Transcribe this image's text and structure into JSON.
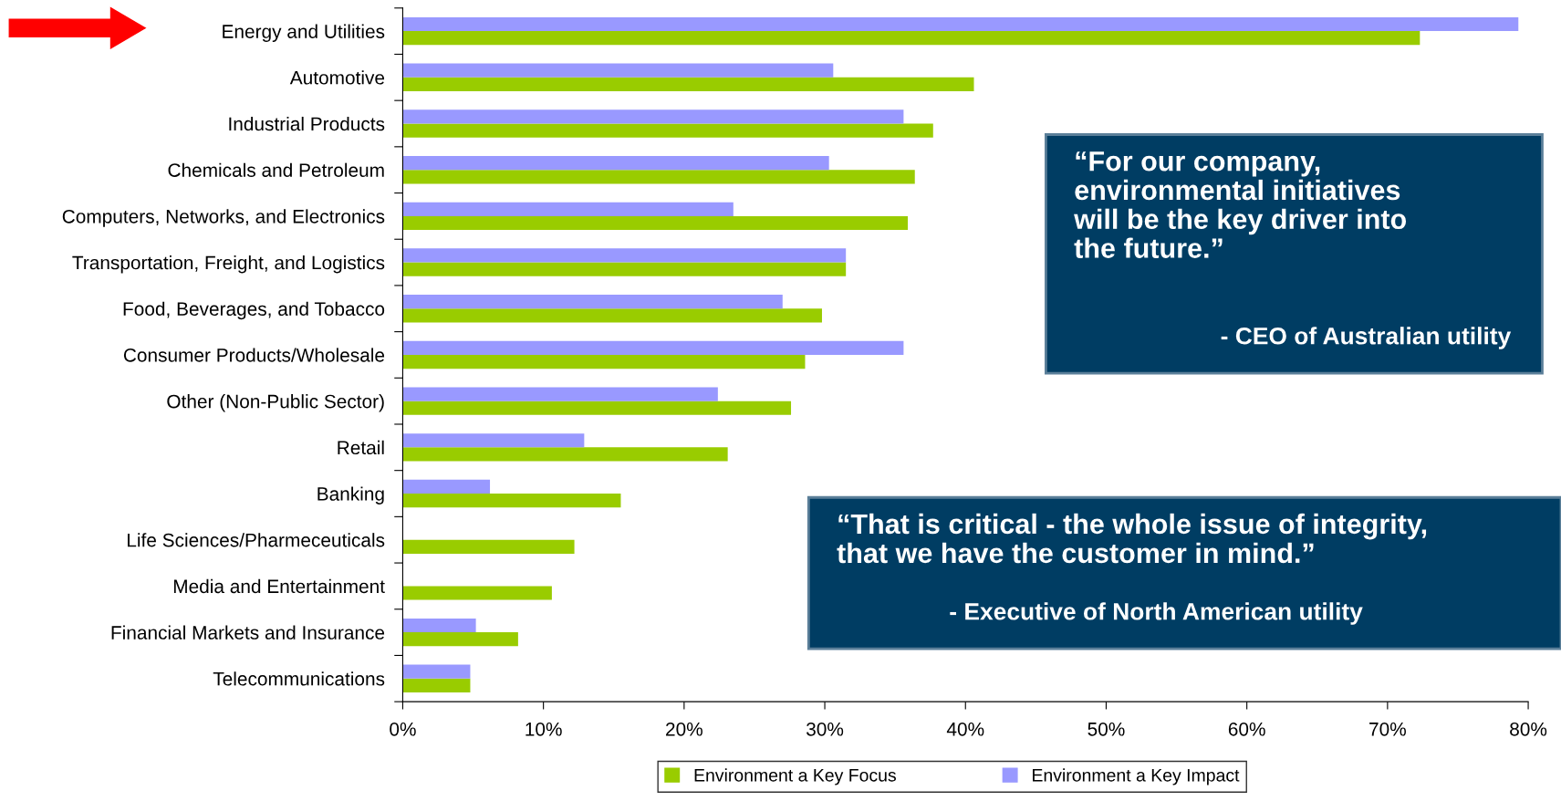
{
  "chart_data": {
    "type": "bar",
    "orientation": "horizontal",
    "categories": [
      "Energy and Utilities",
      "Automotive",
      "Industrial Products",
      "Chemicals and Petroleum",
      "Computers, Networks, and Electronics",
      "Transportation, Freight, and Logistics",
      "Food, Beverages, and Tobacco",
      "Consumer Products/Wholesale",
      "Other (Non-Public Sector)",
      "Retail",
      "Banking",
      "Life Sciences/Pharmeceuticals",
      "Media and Entertainment",
      "Financial Markets and Insurance",
      "Telecommunications"
    ],
    "series": [
      {
        "name": "Environment a Key Focus",
        "color": "#99cc00",
        "values": [
          72.3,
          40.6,
          37.7,
          36.4,
          35.9,
          31.5,
          29.8,
          28.6,
          27.6,
          23.1,
          15.5,
          12.2,
          10.6,
          8.2,
          4.8
        ]
      },
      {
        "name": "Environment a Key Impact",
        "color": "#9999ff",
        "values": [
          79.3,
          30.6,
          35.6,
          30.3,
          23.5,
          31.5,
          27.0,
          35.6,
          22.4,
          12.9,
          6.2,
          0,
          0,
          5.2,
          4.8
        ]
      }
    ],
    "xlim": [
      0,
      80
    ],
    "xticks": [
      {
        "value": 0,
        "label": "0%"
      },
      {
        "value": 10,
        "label": "10%"
      },
      {
        "value": 20,
        "label": "20%"
      },
      {
        "value": 30,
        "label": "30%"
      },
      {
        "value": 40,
        "label": "40%"
      },
      {
        "value": 50,
        "label": "50%"
      },
      {
        "value": 60,
        "label": "60%"
      },
      {
        "value": 70,
        "label": "70%"
      },
      {
        "value": 80,
        "label": "80%"
      }
    ],
    "grid": false,
    "legend": "bottom",
    "annotations": [
      "“For our company,\nenvironmental initiatives\nwill be the key driver into\nthe future.”",
      "- CEO of Australian utility",
      "“That is critical - the whole issue of integrity,\nthat we have the customer in mind.”",
      "- Executive of North American utility"
    ]
  }
}
